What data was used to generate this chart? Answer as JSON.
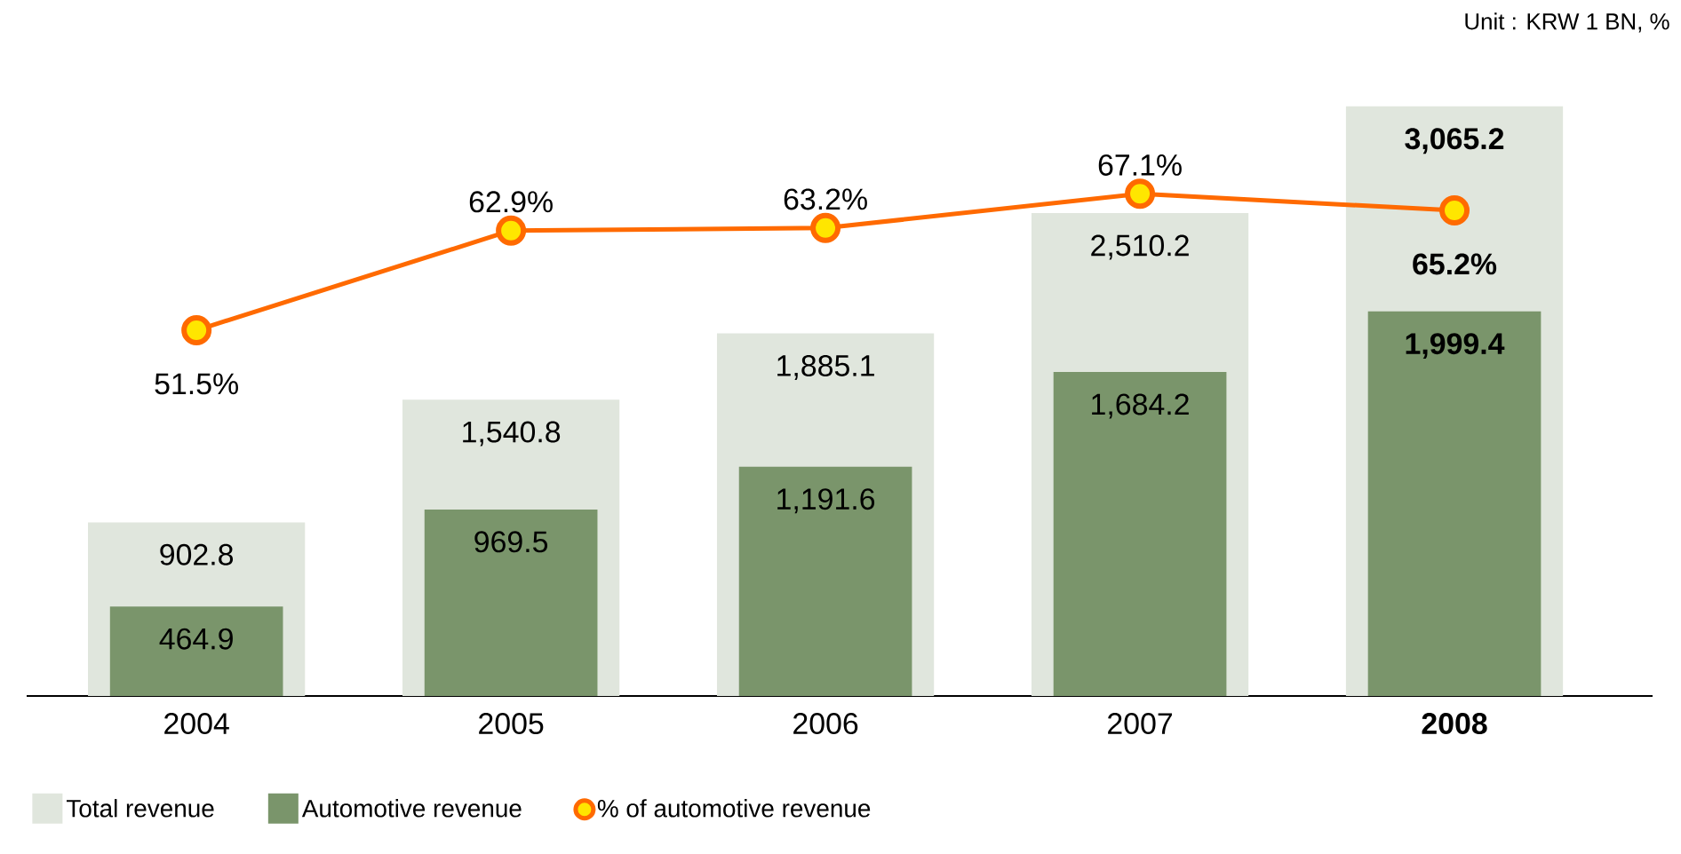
{
  "chart_data": {
    "type": "bar",
    "categories": [
      "2004",
      "2005",
      "2006",
      "2007",
      "**2008**"
    ],
    "series": [
      {
        "name": "Total revenue",
        "color": "#e0e6dd",
        "values": [
          902.8,
          1540.8,
          1885.1,
          2510.2,
          3065.2
        ],
        "value_labels": [
          "902.8",
          "1,540.8",
          "1,885.1",
          "2,510.2",
          "**3,065.2**"
        ]
      },
      {
        "name": "Automotive revenue",
        "color": "#7a956b",
        "values": [
          464.9,
          969.5,
          1191.6,
          1684.2,
          1999.4
        ],
        "value_labels": [
          "464.9",
          "969.5",
          "1,191.6",
          "1,684.2",
          "**1,999.4**"
        ]
      },
      {
        "name": "% of automotive revenue",
        "type": "line",
        "axis": "y2",
        "color": "#ff6a00",
        "values": [
          51.5,
          62.9,
          63.2,
          67.1,
          65.2
        ],
        "value_labels": [
          "51.5%",
          "62.9%",
          "63.2%",
          "67.1%",
          "**65.2%**"
        ]
      }
    ],
    "annotations": [
      "Unit : KRW 1 BN, %"
    ],
    "legend": "bottom",
    "marker": "circle",
    "line_style": "solid"
  }
}
